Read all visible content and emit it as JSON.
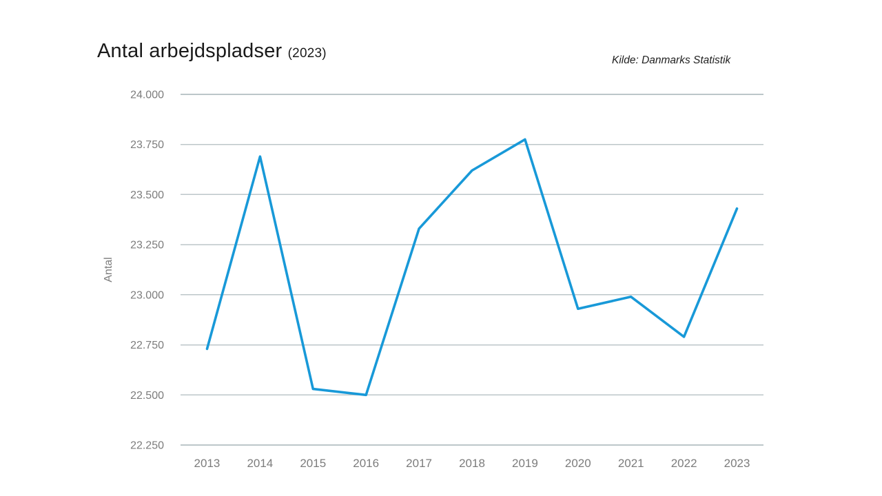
{
  "header": {
    "title": "Antal arbejdspladser",
    "year_note": "(2023)",
    "source": "Kilde: Danmarks Statistik"
  },
  "chart_data": {
    "type": "line",
    "title": "Antal arbejdspladser (2023)",
    "source": "Kilde: Danmarks Statistik",
    "categories": [
      "2013",
      "2014",
      "2015",
      "2016",
      "2017",
      "2018",
      "2019",
      "2020",
      "2021",
      "2022",
      "2023"
    ],
    "series": [
      {
        "name": "Antal arbejdspladser",
        "values": [
          22730,
          23690,
          22530,
          22500,
          23330,
          23620,
          23775,
          22930,
          22990,
          22790,
          23430
        ]
      }
    ],
    "xlabel": "",
    "ylabel": "Antal",
    "ylim": [
      22250,
      24000
    ],
    "yticks": [
      22250,
      22500,
      22750,
      23000,
      23250,
      23500,
      23750,
      24000
    ],
    "ytick_labels": [
      "22.250",
      "22.500",
      "22.750",
      "23.000",
      "23.250",
      "23.500",
      "23.750",
      "24.000"
    ],
    "grid": true,
    "legend": false,
    "colors": {
      "line": "#1899d8",
      "grid": "#bcc6c9",
      "tick_text": "#7c7c7c",
      "title_text": "#1a1a1a"
    }
  }
}
